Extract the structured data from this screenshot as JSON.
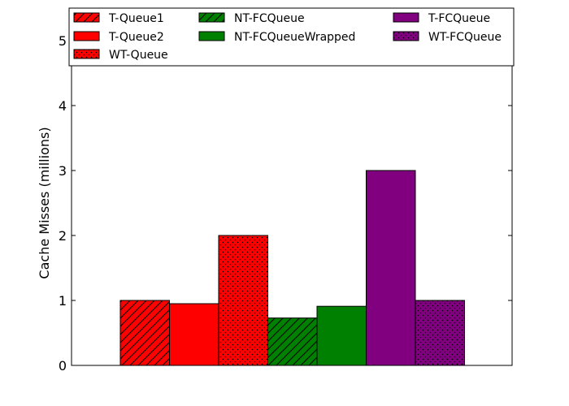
{
  "chart_data": {
    "type": "bar",
    "title": "",
    "xlabel": "",
    "ylabel": "Cache Misses (millions)",
    "ylim": [
      0,
      5.5
    ],
    "yticks": [
      0,
      1,
      2,
      3,
      4,
      5
    ],
    "grid": false,
    "legend_position": "top",
    "series": [
      {
        "name": "T-Queue1",
        "value": 1.0,
        "color": "#ff0000",
        "pattern": "hatch-diagonal"
      },
      {
        "name": "T-Queue2",
        "value": 0.95,
        "color": "#ff0000",
        "pattern": "solid"
      },
      {
        "name": "WT-Queue",
        "value": 2.0,
        "color": "#ff0000",
        "pattern": "dots"
      },
      {
        "name": "NT-FCQueue",
        "value": 0.73,
        "color": "#008000",
        "pattern": "hatch-diagonal"
      },
      {
        "name": "NT-FCQueueWrapped",
        "value": 0.91,
        "color": "#008000",
        "pattern": "solid"
      },
      {
        "name": "T-FCQueue",
        "value": 3.0,
        "color": "#800080",
        "pattern": "solid"
      },
      {
        "name": "WT-FCQueue",
        "value": 1.0,
        "color": "#800080",
        "pattern": "dots"
      }
    ]
  }
}
